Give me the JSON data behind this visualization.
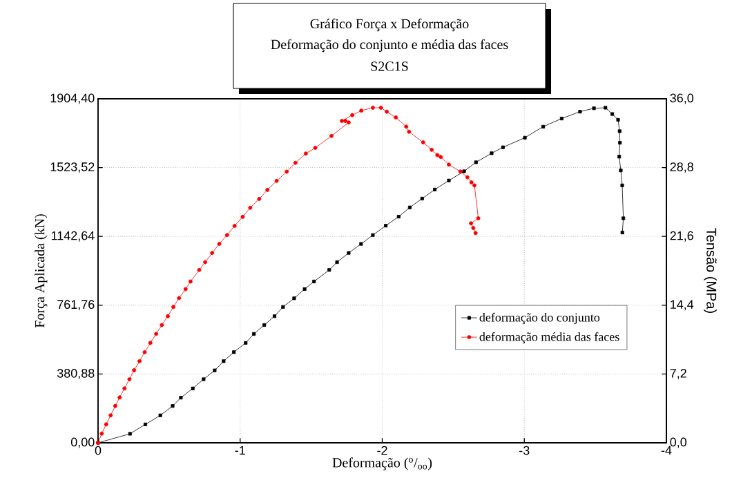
{
  "chart_data": {
    "type": "line",
    "title": "Gráfico Força x Deformação",
    "subtitle": "Deformação do conjunto e média das faces",
    "annotations": [
      "S2C1S"
    ],
    "xlabel": "Deformação ($^{o}$/$_{oo}$)",
    "ylabel": "Força Aplicada (kN)",
    "y2label": "Tensão (MPa)",
    "xlim": [
      0,
      -4
    ],
    "xticks": [
      0,
      -1,
      -2,
      -3,
      -4
    ],
    "ylim": [
      0,
      1904.4
    ],
    "yticks": [
      {
        "value": 0,
        "label": "0,00"
      },
      {
        "value": 380.88,
        "label": "380,88"
      },
      {
        "value": 761.76,
        "label": "761,76"
      },
      {
        "value": 1142.64,
        "label": "1142,64"
      },
      {
        "value": 1523.52,
        "label": "1523,52"
      },
      {
        "value": 1904.4,
        "label": "1904,40"
      }
    ],
    "y2lim": [
      0,
      36
    ],
    "y2ticks": [
      {
        "value": 0,
        "label": "0,0"
      },
      {
        "value": 7.2,
        "label": "7,2"
      },
      {
        "value": 14.4,
        "label": "14,4"
      },
      {
        "value": 21.6,
        "label": "21,6"
      },
      {
        "value": 28.8,
        "label": "28,8"
      },
      {
        "value": 36,
        "label": "36,0"
      }
    ],
    "grid": true,
    "legend": "right",
    "line_style": "solid",
    "series": [
      {
        "name": "deformação do conjunto",
        "color": "#000000",
        "marker": "square",
        "x": [
          0,
          -0.225,
          -0.333,
          -0.438,
          -0.525,
          -0.583,
          -0.667,
          -0.743,
          -0.821,
          -0.884,
          -0.956,
          -1.039,
          -1.097,
          -1.17,
          -1.242,
          -1.302,
          -1.38,
          -1.454,
          -1.52,
          -1.627,
          -1.682,
          -1.764,
          -1.851,
          -1.934,
          -2.025,
          -2.116,
          -2.194,
          -2.281,
          -2.37,
          -2.469,
          -2.576,
          -2.66,
          -2.77,
          -2.85,
          -3.004,
          -3.133,
          -3.263,
          -3.392,
          -3.49,
          -3.571,
          -3.619,
          -3.66,
          -3.671,
          -3.673,
          -3.668,
          -3.679,
          -3.689,
          -3.697,
          -3.69
        ],
        "values": [
          0,
          50,
          102,
          152,
          204,
          250,
          301,
          352,
          401,
          452,
          502,
          553,
          603,
          652,
          701,
          752,
          800,
          851,
          893,
          957,
          1000,
          1051,
          1101,
          1150,
          1202,
          1252,
          1303,
          1352,
          1402,
          1452,
          1503,
          1553,
          1603,
          1636,
          1689,
          1750,
          1795,
          1833,
          1852,
          1855,
          1820,
          1788,
          1725,
          1661,
          1584,
          1508,
          1425,
          1243,
          1164
        ]
      },
      {
        "name": "deformação média das faces",
        "color": "#ff0000",
        "marker": "circle",
        "x": [
          0,
          -0.026,
          -0.057,
          -0.089,
          -0.121,
          -0.152,
          -0.186,
          -0.221,
          -0.254,
          -0.292,
          -0.328,
          -0.368,
          -0.409,
          -0.449,
          -0.491,
          -0.53,
          -0.57,
          -0.616,
          -0.651,
          -0.712,
          -0.754,
          -0.803,
          -0.853,
          -0.908,
          -0.961,
          -1.018,
          -1.071,
          -1.134,
          -1.192,
          -1.257,
          -1.328,
          -1.389,
          -1.462,
          -1.529,
          -1.643,
          -1.764,
          -1.74,
          -1.716,
          -1.789,
          -1.853,
          -1.934,
          -1.991,
          -2.032,
          -2.096,
          -2.169,
          -2.189,
          -2.288,
          -2.348,
          -2.388,
          -2.412,
          -2.469,
          -2.55,
          -2.599,
          -2.628,
          -2.649,
          -2.676,
          -2.625,
          -2.641,
          -2.657
        ],
        "values": [
          0,
          51,
          102,
          152,
          204,
          251,
          301,
          352,
          402,
          452,
          502,
          553,
          603,
          652,
          701,
          752,
          801,
          851,
          893,
          957,
          1000,
          1051,
          1101,
          1150,
          1201,
          1251,
          1301,
          1350,
          1400,
          1450,
          1501,
          1550,
          1601,
          1633,
          1699,
          1773,
          1782,
          1782,
          1814,
          1839,
          1855,
          1855,
          1833,
          1801,
          1750,
          1722,
          1663,
          1622,
          1593,
          1582,
          1540,
          1502,
          1470,
          1442,
          1425,
          1243,
          1215,
          1189,
          1161
        ]
      }
    ]
  }
}
